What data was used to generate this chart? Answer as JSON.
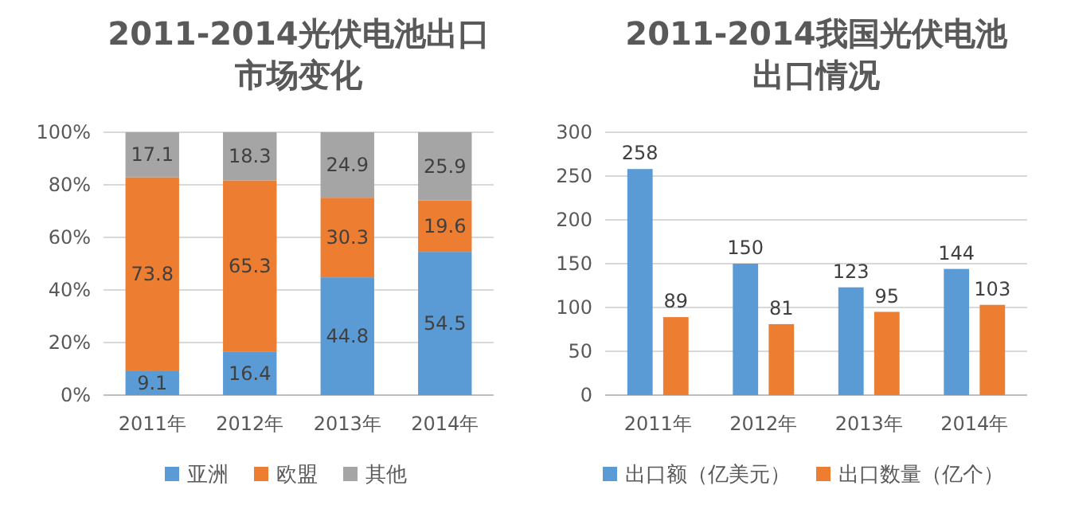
{
  "chart_data": [
    {
      "type": "bar",
      "title": "2011-2014光伏电池出口市场变化",
      "stacked": true,
      "categories": [
        "2011年",
        "2012年",
        "2013年",
        "2014年"
      ],
      "series": [
        {
          "name": "亚洲",
          "color": "#5b9bd5",
          "values": [
            9.1,
            16.4,
            44.8,
            54.5
          ]
        },
        {
          "name": "欧盟",
          "color": "#ed7d31",
          "values": [
            73.8,
            65.3,
            30.3,
            19.6
          ]
        },
        {
          "name": "其他",
          "color": "#a5a5a5",
          "values": [
            17.1,
            18.3,
            24.9,
            25.9
          ]
        }
      ],
      "ylim": [
        0,
        100
      ],
      "yticks": [
        {
          "value": 0,
          "label": "0%"
        },
        {
          "value": 20,
          "label": "20%"
        },
        {
          "value": 40,
          "label": "40%"
        },
        {
          "value": 60,
          "label": "60%"
        },
        {
          "value": 80,
          "label": "80%"
        },
        {
          "value": 100,
          "label": "100%"
        }
      ],
      "grid": "y",
      "legend": "bottom",
      "data_labels": true
    },
    {
      "type": "bar",
      "title": "2011-2014我国光伏电池出口情况",
      "categories": [
        "2011年",
        "2012年",
        "2013年",
        "2014年"
      ],
      "series": [
        {
          "name": "出口额（亿美元）",
          "color": "#5b9bd5",
          "values": [
            258,
            150,
            123,
            144
          ]
        },
        {
          "name": "出口数量（亿个）",
          "color": "#ed7d31",
          "values": [
            89,
            81,
            95,
            103
          ]
        }
      ],
      "ylim": [
        0,
        300
      ],
      "yticks": [
        0,
        50,
        100,
        150,
        200,
        250,
        300
      ],
      "grid": "y",
      "legend": "bottom",
      "data_labels": true
    }
  ]
}
